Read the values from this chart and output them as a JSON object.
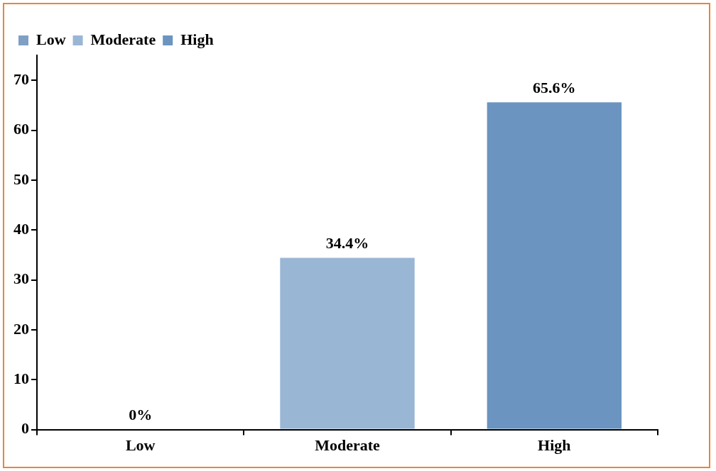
{
  "chart_data": {
    "type": "bar",
    "categories": [
      "Low",
      "Moderate",
      "High"
    ],
    "series": [
      {
        "name": "Low",
        "color": "#7f9fc4",
        "values": [
          0,
          null,
          null
        ],
        "value_labels": [
          "0%",
          null,
          null
        ]
      },
      {
        "name": "Moderate",
        "color": "#9ab6d5",
        "values": [
          null,
          34.4,
          null
        ],
        "value_labels": [
          null,
          "34.4%",
          null
        ]
      },
      {
        "name": "High",
        "color": "#6b94c0",
        "values": [
          null,
          null,
          65.6
        ],
        "value_labels": [
          null,
          null,
          "65.6%"
        ]
      }
    ],
    "ylim": [
      0,
      75
    ],
    "yticks": [
      0,
      10,
      20,
      30,
      40,
      50,
      60,
      70
    ],
    "grid": false,
    "legend": "top left"
  }
}
